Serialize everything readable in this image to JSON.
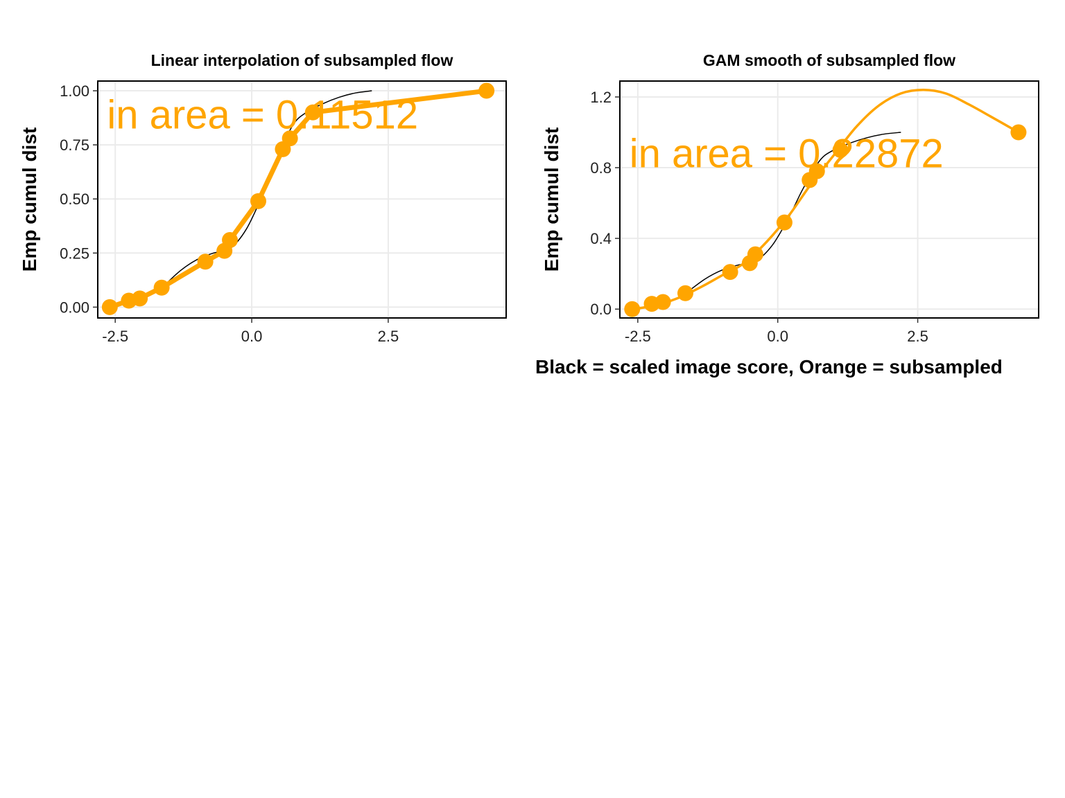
{
  "colors": {
    "orange": "#FFA500",
    "black": "#000000",
    "grid": "#EBEBEB"
  },
  "shared_x_label": "Black = scaled image score, Orange = subsampled",
  "chart_data": [
    {
      "type": "line",
      "title": "Linear interpolation of subsampled flow",
      "ylabel": "Emp cumul dist",
      "xlim": [
        -2.82,
        4.66
      ],
      "ylim": [
        -0.05,
        1.045
      ],
      "x_ticks": [
        -2.5,
        0.0,
        2.5
      ],
      "x_tick_labels": [
        "-2.5",
        "0.0",
        "2.5"
      ],
      "y_ticks": [
        0,
        0.25,
        0.5,
        0.75,
        1.0
      ],
      "y_tick_labels": [
        "0.00",
        "0.25",
        "0.50",
        "0.75",
        "1.00"
      ],
      "annotation": "in area = 0.11512",
      "annotation_pos": {
        "x": -2.65,
        "y": 0.89
      },
      "points": {
        "x": [
          -2.6,
          -2.25,
          -2.05,
          -1.65,
          -0.85,
          -0.5,
          -0.4,
          0.12,
          0.57,
          0.7,
          1.12,
          4.3
        ],
        "y": [
          0.0,
          0.03,
          0.04,
          0.09,
          0.21,
          0.26,
          0.31,
          0.49,
          0.73,
          0.78,
          0.9,
          1.0
        ]
      },
      "reference_curve": {
        "x": [
          -1.6,
          -1.3,
          -1.0,
          -0.7,
          -0.4,
          -0.1,
          0.2,
          0.45,
          0.75,
          1.0,
          1.3,
          1.6,
          1.9,
          2.2
        ],
        "y": [
          0.1,
          0.17,
          0.22,
          0.25,
          0.27,
          0.36,
          0.52,
          0.68,
          0.84,
          0.9,
          0.94,
          0.97,
          0.99,
          1.0
        ]
      },
      "fit": "linear"
    },
    {
      "type": "line",
      "title": "GAM smooth of subsampled flow",
      "ylabel": "Emp cumul dist",
      "xlim": [
        -2.82,
        4.66
      ],
      "ylim": [
        -0.05,
        1.29
      ],
      "x_ticks": [
        -2.5,
        0.0,
        2.5
      ],
      "x_tick_labels": [
        "-2.5",
        "0.0",
        "2.5"
      ],
      "y_ticks": [
        0.0,
        0.4,
        0.8,
        1.2
      ],
      "y_tick_labels": [
        "0.0",
        "0.4",
        "0.8",
        "1.2"
      ],
      "annotation": "in area = 0.22872",
      "annotation_pos": {
        "x": -2.65,
        "y": 0.88
      },
      "points": {
        "x": [
          -2.6,
          -2.25,
          -2.05,
          -1.65,
          -0.85,
          -0.5,
          -0.4,
          0.12,
          0.57,
          0.7,
          1.12,
          4.3
        ],
        "y": [
          0.0,
          0.03,
          0.04,
          0.09,
          0.21,
          0.26,
          0.31,
          0.49,
          0.73,
          0.78,
          0.9,
          1.0
        ]
      },
      "reference_curve": {
        "x": [
          -1.6,
          -1.3,
          -1.0,
          -0.7,
          -0.4,
          -0.1,
          0.2,
          0.45,
          0.75,
          1.0,
          1.3,
          1.6,
          1.9,
          2.2
        ],
        "y": [
          0.1,
          0.17,
          0.22,
          0.25,
          0.27,
          0.36,
          0.52,
          0.68,
          0.84,
          0.9,
          0.94,
          0.97,
          0.99,
          1.0
        ]
      },
      "fit": "smooth",
      "smooth_curve": {
        "x": [
          -2.6,
          -2.2,
          -1.8,
          -1.4,
          -1.0,
          -0.6,
          -0.2,
          0.2,
          0.6,
          1.0,
          1.4,
          1.8,
          2.2,
          2.6,
          3.0,
          3.4,
          3.8,
          4.3
        ],
        "y": [
          0.0,
          0.02,
          0.06,
          0.12,
          0.19,
          0.26,
          0.38,
          0.53,
          0.71,
          0.87,
          1.03,
          1.15,
          1.22,
          1.24,
          1.22,
          1.16,
          1.09,
          1.0
        ]
      }
    }
  ]
}
